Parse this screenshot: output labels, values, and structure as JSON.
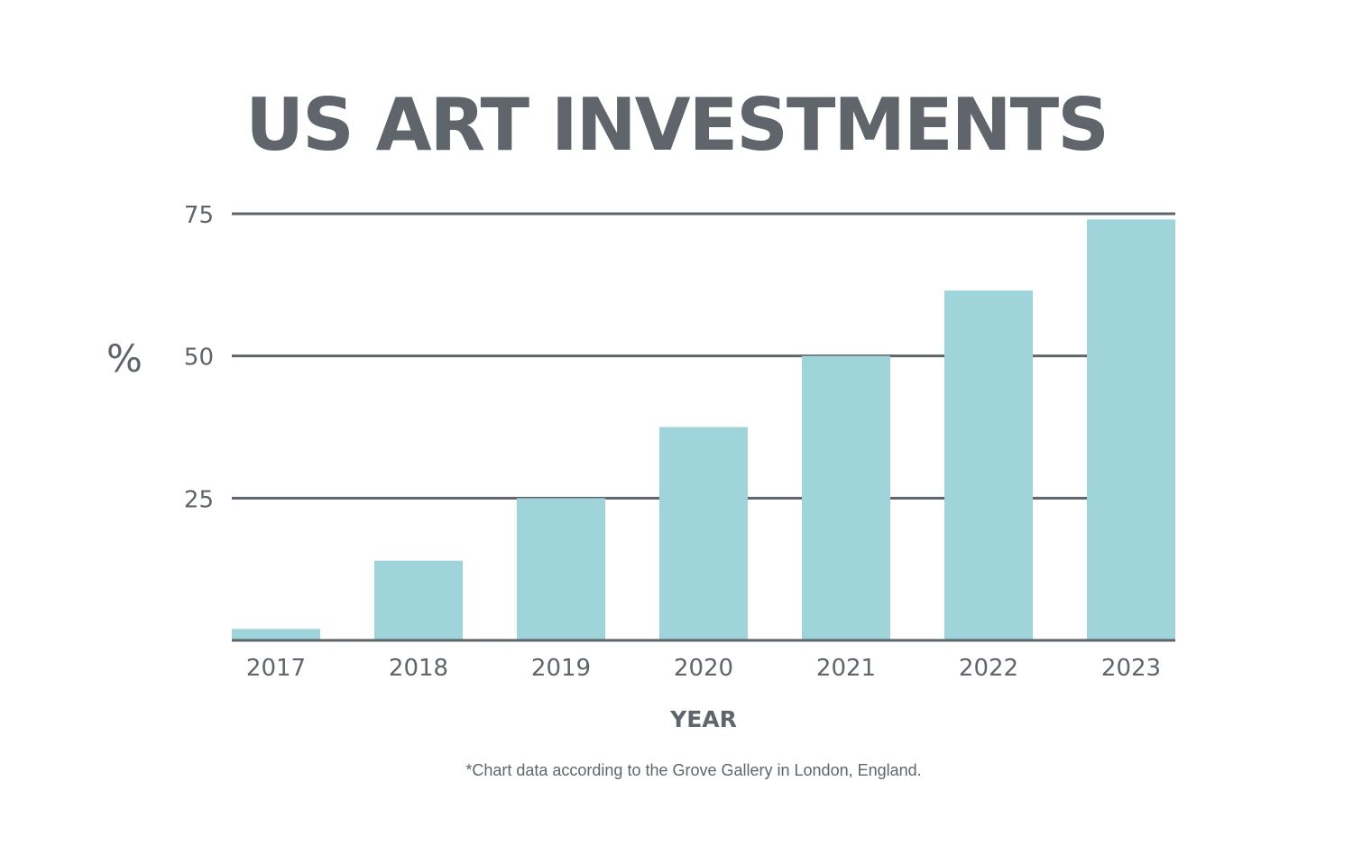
{
  "chart_data": {
    "type": "bar",
    "title": "US ART INVESTMENTS",
    "xlabel": "YEAR",
    "ylabel": "%",
    "categories": [
      "2017",
      "2018",
      "2019",
      "2020",
      "2021",
      "2022",
      "2023"
    ],
    "values": [
      2,
      14,
      25,
      37.5,
      50,
      61.5,
      74
    ],
    "ylim": [
      0,
      75
    ],
    "yticks": [
      25,
      50,
      75
    ],
    "grid": true,
    "footnote": "*Chart data according to the Grove Gallery in London, England.",
    "colors": {
      "bar": "#9fd4db",
      "text": "#5f656b",
      "grid": "#5f656b",
      "background": "#ffffff"
    }
  }
}
